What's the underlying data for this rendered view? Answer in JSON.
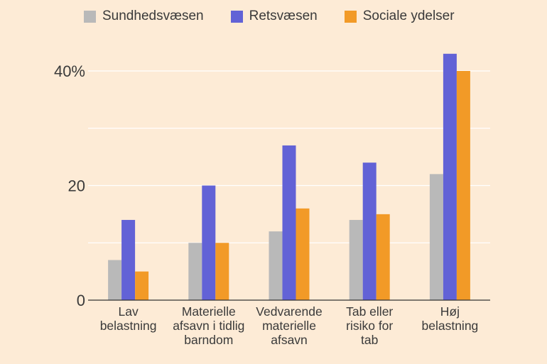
{
  "chart_data": {
    "type": "bar",
    "categories": [
      [
        "Lav",
        "belastning"
      ],
      [
        "Materielle",
        "afsavn i tidlig",
        "barndom"
      ],
      [
        "Vedvarende",
        "materielle",
        "afsavn"
      ],
      [
        "Tab eller",
        "risiko for",
        "tab"
      ],
      [
        "Høj",
        "belastning"
      ]
    ],
    "series": [
      {
        "name": "Sundhedsvæsen",
        "color": "#b9b9b9",
        "values": [
          7,
          10,
          12,
          14,
          22
        ]
      },
      {
        "name": "Retsvæsen",
        "color": "#6262d6",
        "values": [
          14,
          20,
          27,
          24,
          43
        ]
      },
      {
        "name": "Sociale ydelser",
        "color": "#f29a27",
        "values": [
          5,
          10,
          16,
          15,
          40
        ]
      }
    ],
    "yticks": [
      {
        "value": 0,
        "label": "0"
      },
      {
        "value": 20,
        "label": "20"
      },
      {
        "value": 40,
        "label": "40%"
      }
    ],
    "gridlines": [
      10,
      20,
      30,
      40
    ],
    "ylim": [
      0,
      45
    ],
    "legend_position": "top",
    "grid": true,
    "colors": {
      "background": "#fdebd6",
      "gridline": "#ffffff",
      "axis": "#333333",
      "text": "#3a3a3a"
    }
  }
}
